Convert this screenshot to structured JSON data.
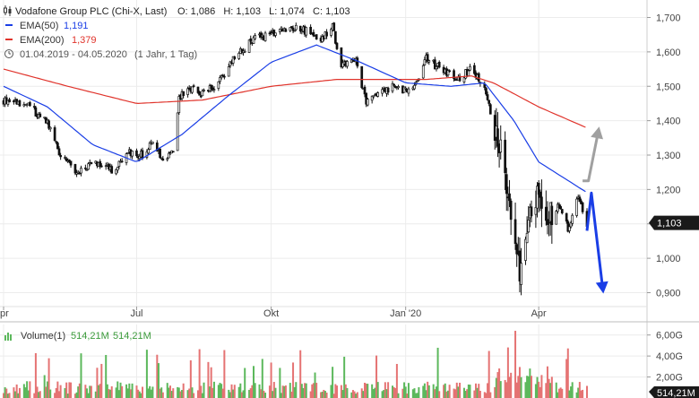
{
  "legend": {
    "instrument": "Vodafone Group PLC (Chi-X, Last)",
    "ohlc": "O: 1,086   H: 1,103   L: 1,074   C: 1,103",
    "ema50_label": "EMA(50)",
    "ema50_value": "1,191",
    "ema200_label": "EMA(200)",
    "ema200_value": "1,379",
    "range": "01.04.2019 - 04.05.2020",
    "period": "(1 Jahr, 1 Tag)"
  },
  "volume_legend": {
    "label": "Volume(1)",
    "value1": "514,21M",
    "value2": "514,21M"
  },
  "current_price_badge": "1,103",
  "current_volume_badge": "514,21M",
  "colors": {
    "ema50": "#1a3ee6",
    "ema200": "#e0332b",
    "arrow_up": "#a0a0a0",
    "arrow_down": "#1a3ee6",
    "volume_up": "#5cb85c",
    "volume_down": "#e57373",
    "badge": "#1a1a1a"
  },
  "chart_data": {
    "type": "candlestick",
    "price_axis": {
      "ticks": [
        "1,700",
        "1,600",
        "1,500",
        "1,400",
        "1,300",
        "1,200",
        "1,100",
        "1,000",
        "0,900"
      ],
      "tick_values": [
        1.7,
        1.6,
        1.5,
        1.4,
        1.3,
        1.2,
        1.1,
        1.0,
        0.9
      ],
      "ylim": [
        0.87,
        1.73
      ]
    },
    "x_axis": {
      "labels": [
        "pr",
        "Jul",
        "Okt",
        "Jan '20",
        "Apr"
      ],
      "label_dates": [
        "2019-04-01",
        "2019-07-01",
        "2019-10-01",
        "2020-01-01",
        "2020-04-01"
      ],
      "range": [
        "2019-04-01",
        "2020-05-04"
      ]
    },
    "volume_axis": {
      "ticks": [
        "6,00G",
        "4,00G",
        "2,00G"
      ],
      "tick_values": [
        6,
        4,
        2
      ],
      "ylim": [
        0,
        7
      ]
    },
    "price_anchors": [
      [
        "2019-04-01",
        1.46
      ],
      [
        "2019-04-15",
        1.45
      ],
      [
        "2019-05-01",
        1.4
      ],
      [
        "2019-05-10",
        1.3
      ],
      [
        "2019-05-20",
        1.25
      ],
      [
        "2019-06-01",
        1.28
      ],
      [
        "2019-06-15",
        1.25
      ],
      [
        "2019-06-25",
        1.31
      ],
      [
        "2019-07-05",
        1.3
      ],
      [
        "2019-07-12",
        1.34
      ],
      [
        "2019-07-20",
        1.28
      ],
      [
        "2019-07-26",
        1.31
      ],
      [
        "2019-07-30",
        1.46
      ],
      [
        "2019-08-05",
        1.5
      ],
      [
        "2019-08-15",
        1.48
      ],
      [
        "2019-08-25",
        1.5
      ],
      [
        "2019-09-05",
        1.58
      ],
      [
        "2019-09-20",
        1.64
      ],
      [
        "2019-10-01",
        1.65
      ],
      [
        "2019-10-15",
        1.67
      ],
      [
        "2019-10-25",
        1.66
      ],
      [
        "2019-11-05",
        1.64
      ],
      [
        "2019-11-12",
        1.67
      ],
      [
        "2019-11-18",
        1.56
      ],
      [
        "2019-11-28",
        1.58
      ],
      [
        "2019-12-05",
        1.45
      ],
      [
        "2019-12-15",
        1.48
      ],
      [
        "2019-12-25",
        1.5
      ],
      [
        "2020-01-05",
        1.48
      ],
      [
        "2020-01-15",
        1.58
      ],
      [
        "2020-01-25",
        1.55
      ],
      [
        "2020-02-05",
        1.52
      ],
      [
        "2020-02-15",
        1.55
      ],
      [
        "2020-02-25",
        1.48
      ],
      [
        "2020-03-01",
        1.38
      ],
      [
        "2020-03-06",
        1.32
      ],
      [
        "2020-03-10",
        1.2
      ],
      [
        "2020-03-16",
        1.05
      ],
      [
        "2020-03-19",
        0.95
      ],
      [
        "2020-03-24",
        1.1
      ],
      [
        "2020-03-31",
        1.18
      ],
      [
        "2020-04-07",
        1.12
      ],
      [
        "2020-04-15",
        1.15
      ],
      [
        "2020-04-22",
        1.08
      ],
      [
        "2020-04-28",
        1.18
      ],
      [
        "2020-05-04",
        1.103
      ]
    ],
    "ema50_anchors": [
      [
        "2019-04-01",
        1.5
      ],
      [
        "2019-05-01",
        1.44
      ],
      [
        "2019-06-01",
        1.33
      ],
      [
        "2019-07-01",
        1.28
      ],
      [
        "2019-08-01",
        1.36
      ],
      [
        "2019-09-01",
        1.47
      ],
      [
        "2019-10-01",
        1.57
      ],
      [
        "2019-11-01",
        1.62
      ],
      [
        "2019-12-01",
        1.57
      ],
      [
        "2020-01-01",
        1.51
      ],
      [
        "2020-02-01",
        1.5
      ],
      [
        "2020-02-24",
        1.51
      ],
      [
        "2020-03-15",
        1.4
      ],
      [
        "2020-04-01",
        1.28
      ],
      [
        "2020-05-04",
        1.191
      ]
    ],
    "ema200_anchors": [
      [
        "2019-04-01",
        1.55
      ],
      [
        "2019-05-15",
        1.5
      ],
      [
        "2019-07-01",
        1.45
      ],
      [
        "2019-08-15",
        1.46
      ],
      [
        "2019-10-01",
        1.5
      ],
      [
        "2019-11-15",
        1.52
      ],
      [
        "2019-12-15",
        1.52
      ],
      [
        "2020-01-15",
        1.52
      ],
      [
        "2020-02-15",
        1.53
      ],
      [
        "2020-03-01",
        1.51
      ],
      [
        "2020-04-01",
        1.44
      ],
      [
        "2020-05-04",
        1.379
      ]
    ],
    "annotations": {
      "arrow_up_points": [
        [
          "2020-05-01",
          1.225
        ],
        [
          "2020-05-05",
          1.225
        ],
        [
          "2020-05-12",
          1.375
        ]
      ],
      "arrow_down_points": [
        [
          "2020-05-04",
          1.08
        ],
        [
          "2020-05-07",
          1.19
        ],
        [
          "2020-05-15",
          0.905
        ]
      ]
    }
  }
}
